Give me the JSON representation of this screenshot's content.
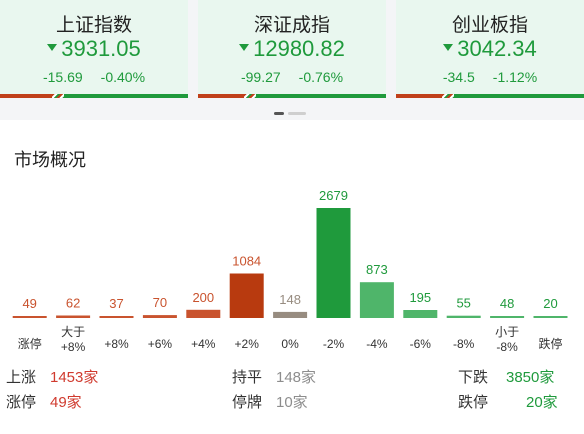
{
  "indices": [
    {
      "name": "上证指数",
      "price": "3931.05",
      "change": "-15.69",
      "pct": "-0.40%",
      "red_share": 0.28
    },
    {
      "name": "深证成指",
      "price": "12980.82",
      "change": "-99.27",
      "pct": "-0.76%",
      "red_share": 0.25
    },
    {
      "name": "创业板指",
      "price": "3042.34",
      "change": "-34.5",
      "pct": "-1.12%",
      "red_share": 0.25
    }
  ],
  "section_title": "市场概况",
  "chart_data": {
    "type": "bar",
    "categories": [
      "涨停",
      "大于\n+8%",
      "+8%",
      "+6%",
      "+4%",
      "+2%",
      "0%",
      "-2%",
      "-4%",
      "-6%",
      "-8%",
      "小于\n-8%",
      "跌停"
    ],
    "values": [
      49,
      62,
      37,
      70,
      200,
      1084,
      148,
      2679,
      873,
      195,
      55,
      48,
      20
    ],
    "colors": [
      "#c9532e",
      "#c9532e",
      "#c9532e",
      "#c9532e",
      "#c9532e",
      "#b83a0f",
      "#978c80",
      "#1f9a3c",
      "#4fb56a",
      "#4fb56a",
      "#4fb56a",
      "#4fb56a",
      "#4fb56a"
    ],
    "label_colors": [
      "#c9532e",
      "#c9532e",
      "#c9532e",
      "#c9532e",
      "#c9532e",
      "#c9532e",
      "#978c80",
      "#1f9a3c",
      "#1f9a3c",
      "#1f9a3c",
      "#1f9a3c",
      "#1f9a3c",
      "#1f9a3c"
    ]
  },
  "stats": {
    "up_label": "上涨",
    "up_value": "1453家",
    "flat_label": "持平",
    "flat_value": "148家",
    "down_label": "下跌",
    "down_value": "3850家",
    "limit_up_label": "涨停",
    "limit_up_value": "49家",
    "suspended_label": "停牌",
    "suspended_value": "10家",
    "limit_down_label": "跌停",
    "limit_down_value": "20家"
  },
  "colors": {
    "red": "#d03a2e",
    "green": "#1f9a3c",
    "gray": "#8d8d8d"
  }
}
